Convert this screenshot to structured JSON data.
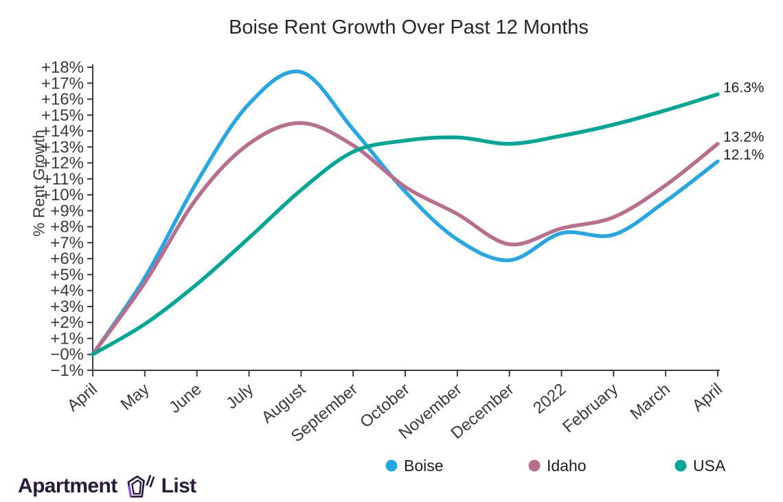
{
  "logo": {
    "word1": "Apartment",
    "word2": "List",
    "text_color": "#2b1a3b",
    "accent_color": "#8a4df6"
  },
  "chart_data": {
    "type": "line",
    "title": "Boise Rent Growth Over Past 12 Months",
    "xlabel": "",
    "ylabel": "% Rent Growth",
    "grid": false,
    "legend_position": "bottom",
    "axis_color": "#3d3d3d",
    "tick_label_color": "#3a3a3a",
    "end_label_color": "#1c1c1c",
    "x_categories": [
      "April",
      "May",
      "June",
      "July",
      "August",
      "September",
      "October",
      "November",
      "December",
      "2022",
      "February",
      "March",
      "April"
    ],
    "y_axis": {
      "min": -1,
      "max": 18,
      "step": 1,
      "tick_labels": [
        "+18%",
        "+17%",
        "+16%",
        "+15%",
        "+14%",
        "+13%",
        "+12%",
        "+11%",
        "+10%",
        "+9%",
        "+8%",
        "+7%",
        "+6%",
        "+5%",
        "+4%",
        "+3%",
        "+2%",
        "+1%",
        "−0%",
        "−1%"
      ]
    },
    "series": [
      {
        "name": "Boise",
        "color": "#27A6E5",
        "end_label": "12.1%",
        "values": [
          0,
          4.8,
          10.8,
          15.7,
          17.7,
          14.1,
          10.2,
          7.2,
          5.9,
          7.6,
          7.5,
          9.6,
          12.1
        ]
      },
      {
        "name": "Idaho",
        "color": "#B96E8E",
        "end_label": "13.2%",
        "values": [
          0,
          4.5,
          9.8,
          13.2,
          14.5,
          13.1,
          10.5,
          8.8,
          6.9,
          7.9,
          8.6,
          10.6,
          13.2
        ]
      },
      {
        "name": "USA",
        "color": "#00A795",
        "end_label": "16.3%",
        "values": [
          0,
          1.9,
          4.4,
          7.3,
          10.3,
          12.7,
          13.4,
          13.6,
          13.2,
          13.7,
          14.4,
          15.3,
          16.3
        ]
      }
    ]
  }
}
